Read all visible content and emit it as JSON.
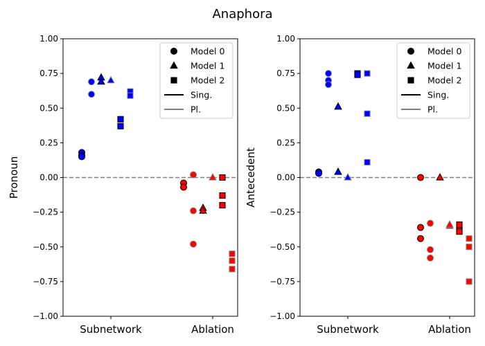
{
  "title": "Anaphora",
  "chart_data": [
    {
      "type": "scatter",
      "ylabel": "Pronoun",
      "categories": [
        "Subnetwork",
        "Ablation"
      ],
      "category_colors": [
        "#0000ff",
        "#ff0000"
      ],
      "ylim": [
        -1,
        1
      ],
      "yticks": [
        {
          "value": -1,
          "label": "−1.00"
        },
        {
          "value": -0.75,
          "label": "−0.75"
        },
        {
          "value": -0.5,
          "label": "−0.50"
        },
        {
          "value": -0.25,
          "label": "−0.25"
        },
        {
          "value": 0,
          "label": "0.00"
        },
        {
          "value": 0.25,
          "label": "0.25"
        },
        {
          "value": 0.5,
          "label": "0.50"
        },
        {
          "value": 0.75,
          "label": "0.75"
        },
        {
          "value": 1,
          "label": "1.00"
        }
      ],
      "hline": 0,
      "series": [
        {
          "marker": "circle",
          "edgecolor": "#000000",
          "values": [
            [
              0.18,
              0.16,
              0.15
            ],
            [
              -0.04,
              -0.07
            ]
          ]
        },
        {
          "marker": "circle",
          "edgecolor": "#808080",
          "values": [
            [
              0.69,
              0.6
            ],
            [
              0.02,
              -0.24,
              -0.48
            ]
          ]
        },
        {
          "marker": "triangle",
          "edgecolor": "#000000",
          "values": [
            [
              0.72,
              0.69
            ],
            [
              -0.22,
              -0.24
            ]
          ]
        },
        {
          "marker": "triangle",
          "edgecolor": "#808080",
          "values": [
            [
              0.7
            ],
            [
              0.0
            ]
          ]
        },
        {
          "marker": "square",
          "edgecolor": "#000000",
          "values": [
            [
              0.42,
              0.37
            ],
            [
              0.0,
              -0.13,
              -0.2
            ]
          ]
        },
        {
          "marker": "square",
          "edgecolor": "#808080",
          "values": [
            [
              0.62,
              0.59
            ],
            [
              -0.55,
              -0.6,
              -0.66
            ]
          ]
        }
      ],
      "legend": {
        "loc": "upper right",
        "entries": [
          {
            "label": "Model 0",
            "marker": "circle"
          },
          {
            "label": "Model 1",
            "marker": "triangle"
          },
          {
            "label": "Model 2",
            "marker": "square"
          },
          {
            "label": "Sing.",
            "line": "#000000"
          },
          {
            "label": "Pl.",
            "line": "#808080"
          }
        ]
      }
    },
    {
      "type": "scatter",
      "ylabel": "Antecedent",
      "categories": [
        "Subnetwork",
        "Ablation"
      ],
      "category_colors": [
        "#0000ff",
        "#ff0000"
      ],
      "ylim": [
        -1,
        1
      ],
      "yticks": [
        {
          "value": -1,
          "label": "−1.00"
        },
        {
          "value": -0.75,
          "label": "−0.75"
        },
        {
          "value": -0.5,
          "label": "−0.50"
        },
        {
          "value": -0.25,
          "label": "−0.25"
        },
        {
          "value": 0,
          "label": "0.00"
        },
        {
          "value": 0.25,
          "label": "0.25"
        },
        {
          "value": 0.5,
          "label": "0.50"
        },
        {
          "value": 0.75,
          "label": "0.75"
        },
        {
          "value": 1,
          "label": "1.00"
        }
      ],
      "hline": 0,
      "series": [
        {
          "marker": "circle",
          "edgecolor": "#000000",
          "values": [
            [
              0.04,
              0.03
            ],
            [
              -0.36,
              -0.44,
              0.0
            ]
          ]
        },
        {
          "marker": "circle",
          "edgecolor": "#808080",
          "values": [
            [
              0.75,
              0.7,
              0.67
            ],
            [
              -0.33,
              -0.52,
              -0.58
            ]
          ]
        },
        {
          "marker": "triangle",
          "edgecolor": "#000000",
          "values": [
            [
              0.51,
              0.04
            ],
            [
              0.0
            ]
          ]
        },
        {
          "marker": "triangle",
          "edgecolor": "#808080",
          "values": [
            [
              0.0
            ],
            [
              -0.35,
              -0.34
            ]
          ]
        },
        {
          "marker": "square",
          "edgecolor": "#000000",
          "values": [
            [
              0.75,
              0.74
            ],
            [
              -0.34,
              -0.38,
              -0.39
            ]
          ]
        },
        {
          "marker": "square",
          "edgecolor": "#808080",
          "values": [
            [
              0.75,
              0.46,
              0.11
            ],
            [
              -0.44,
              -0.5,
              -0.75
            ]
          ]
        }
      ],
      "legend": {
        "loc": "upper right",
        "entries": [
          {
            "label": "Model 0",
            "marker": "circle"
          },
          {
            "label": "Model 1",
            "marker": "triangle"
          },
          {
            "label": "Model 2",
            "marker": "square"
          },
          {
            "label": "Sing.",
            "line": "#000000"
          },
          {
            "label": "Pl.",
            "line": "#808080"
          }
        ]
      }
    }
  ]
}
